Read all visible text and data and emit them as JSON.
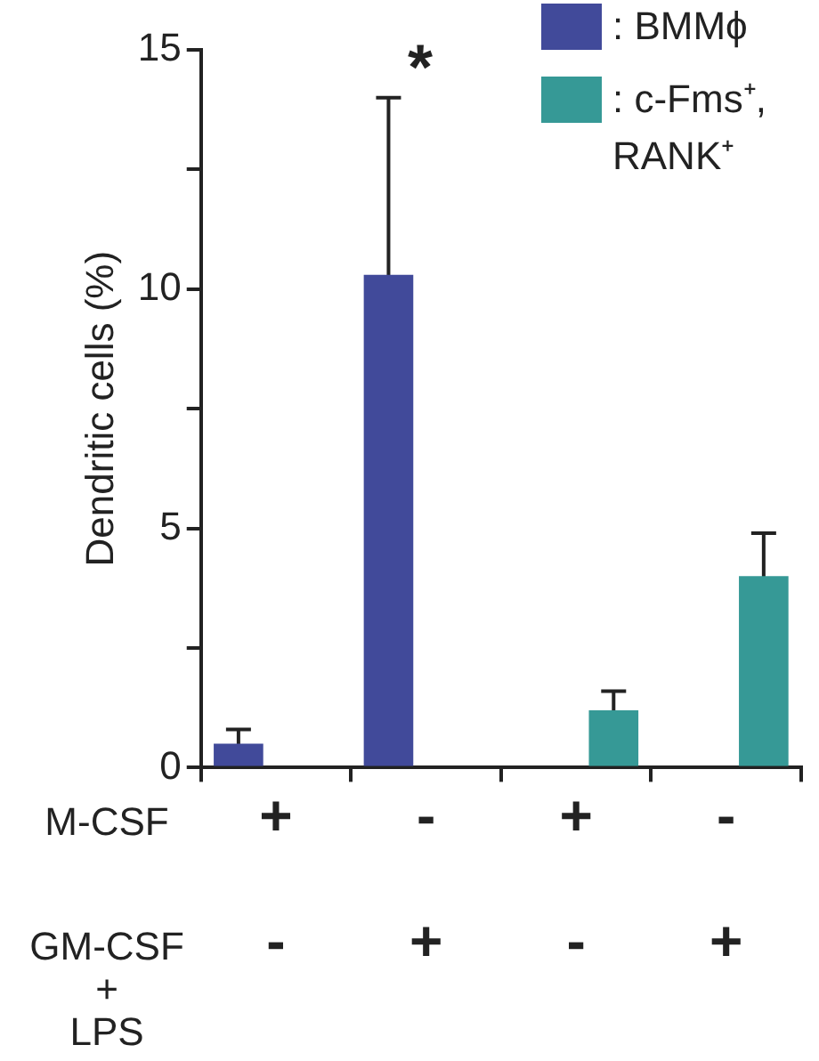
{
  "chart_data": {
    "type": "bar",
    "ylabel": "Dendritic cells (%)",
    "categories": [
      "+\n-",
      "-\n+",
      "+\n-",
      "-\n+"
    ],
    "series": [
      {
        "name": ": BMMϕ",
        "color": "#414a9a",
        "values": [
          0.5,
          10.3,
          null,
          null
        ],
        "errors": [
          0.3,
          3.7,
          null,
          null
        ]
      },
      {
        "name": ": c-Fms⁺, RANK⁺",
        "color": "#369996",
        "values": [
          null,
          null,
          1.2,
          4.0
        ],
        "errors": [
          null,
          null,
          0.4,
          0.9
        ]
      }
    ],
    "ylim": [
      0,
      15
    ],
    "yticks": [
      0,
      {
        "value": 2.5,
        "label": null
      },
      5,
      {
        "value": 7.5,
        "label": null
      },
      10,
      {
        "value": 12.5,
        "label": null
      },
      15
    ],
    "annotations": [
      "*",
      "M-CSF",
      "GM-CSF\n+\nLPS"
    ],
    "legend": "top right",
    "grid": false
  }
}
